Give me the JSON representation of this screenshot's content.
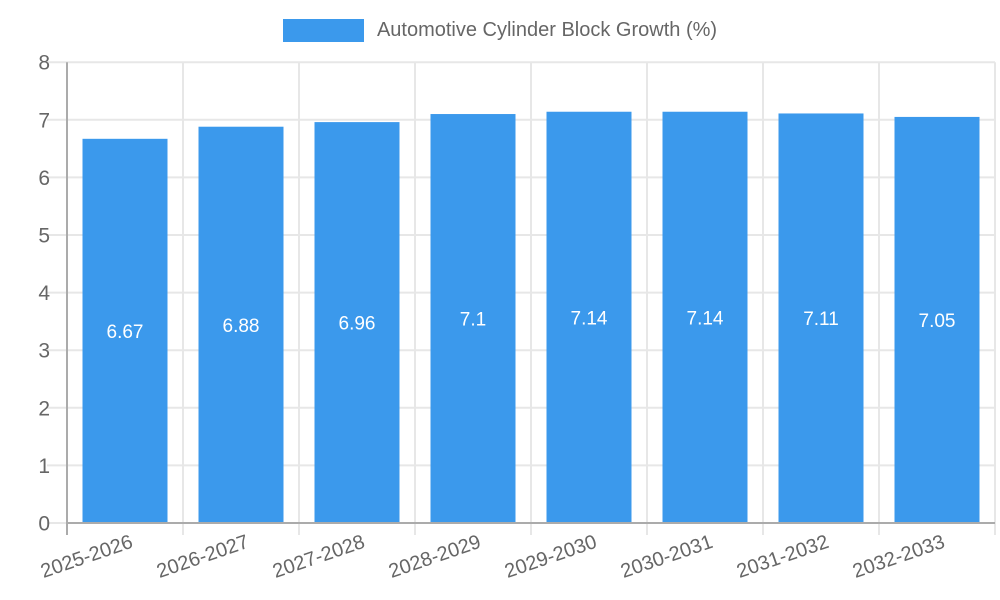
{
  "chart_data": {
    "type": "bar",
    "title": "Automotive Cylinder Block Growth (%)",
    "categories": [
      "2025-2026",
      "2026-2027",
      "2027-2028",
      "2028-2029",
      "2029-2030",
      "2030-2031",
      "2031-2032",
      "2032-2033"
    ],
    "values": [
      6.67,
      6.88,
      6.96,
      7.1,
      7.14,
      7.14,
      7.11,
      7.05
    ],
    "xlabel": "",
    "ylabel": "",
    "ylim": [
      0,
      8
    ],
    "ytick_step": 1,
    "grid": true,
    "legend_position": "top",
    "bar_value_labels_shown": true,
    "colors": {
      "bar": "#3B99EC",
      "grid": "#E7E7E7",
      "axis": "#ABABAB",
      "tick_text": "#666666",
      "value_text": "#FFFFFF"
    }
  }
}
